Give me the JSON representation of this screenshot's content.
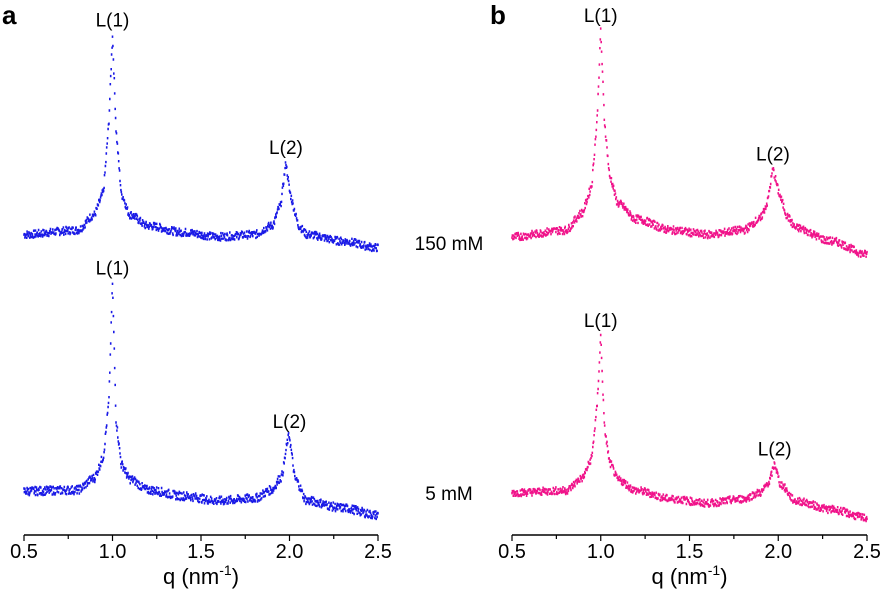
{
  "chart_data": [
    {
      "type": "scatter",
      "panel_label": "a",
      "xlabel": "q (nm",
      "xlabel_sup": "-1",
      "xlabel_end": ")",
      "xlim": [
        0.5,
        2.5
      ],
      "xticks": [
        "0.5",
        "1.0",
        "1.5",
        "2.0",
        "2.5"
      ],
      "y_axis_shown": false,
      "color": "#1a1ae6",
      "series": [
        {
          "name": "150 mM",
          "x": [
            0.5,
            0.8,
            0.9,
            0.95,
            0.98,
            1.0,
            1.02,
            1.05,
            1.1,
            1.2,
            1.4,
            1.6,
            1.8,
            1.9,
            1.95,
            1.98,
            2.0,
            2.05,
            2.1,
            2.3,
            2.5
          ],
          "y": [
            0.07,
            0.09,
            0.16,
            0.27,
            0.59,
            0.98,
            0.55,
            0.25,
            0.16,
            0.11,
            0.08,
            0.06,
            0.07,
            0.11,
            0.2,
            0.4,
            0.27,
            0.11,
            0.07,
            0.04,
            0.01
          ],
          "annotations": [
            {
              "x": 1.0,
              "text": "L(1)"
            },
            {
              "x": 1.98,
              "text": "L(2)"
            }
          ]
        },
        {
          "name": "5 mM",
          "x": [
            0.5,
            0.8,
            0.9,
            0.95,
            0.98,
            1.0,
            1.02,
            1.05,
            1.1,
            1.2,
            1.4,
            1.6,
            1.8,
            1.9,
            1.95,
            2.0,
            2.03,
            2.1,
            2.3,
            2.5
          ],
          "y": [
            0.12,
            0.125,
            0.175,
            0.27,
            0.5,
            0.99,
            0.42,
            0.23,
            0.17,
            0.125,
            0.1,
            0.08,
            0.09,
            0.125,
            0.175,
            0.35,
            0.17,
            0.08,
            0.05,
            0.02
          ],
          "annotations": [
            {
              "x": 1.0,
              "text": "L(1)"
            },
            {
              "x": 2.0,
              "text": "L(2)"
            }
          ]
        }
      ]
    },
    {
      "type": "scatter",
      "panel_label": "b",
      "xlabel": "q (nm",
      "xlabel_sup": "-1",
      "xlabel_end": ")",
      "xlim": [
        0.5,
        2.5
      ],
      "xticks": [
        "0.5",
        "1.0",
        "1.5",
        "2.0",
        "2.5"
      ],
      "y_axis_shown": false,
      "color": "#f0138a",
      "series": [
        {
          "name": "150 mM",
          "x": [
            0.5,
            0.8,
            0.9,
            0.95,
            0.98,
            1.0,
            1.02,
            1.05,
            1.1,
            1.2,
            1.4,
            1.6,
            1.8,
            1.9,
            1.94,
            1.97,
            2.0,
            2.05,
            2.1,
            2.3,
            2.5
          ],
          "y": [
            0.06,
            0.09,
            0.17,
            0.3,
            0.6,
            1.0,
            0.6,
            0.33,
            0.21,
            0.14,
            0.09,
            0.07,
            0.09,
            0.14,
            0.22,
            0.37,
            0.27,
            0.15,
            0.1,
            0.04,
            -0.02
          ],
          "annotations": [
            {
              "x": 1.0,
              "text": "L(1)"
            },
            {
              "x": 1.97,
              "text": "L(2)"
            }
          ]
        },
        {
          "name": "5 mM",
          "x": [
            0.5,
            0.8,
            0.9,
            0.95,
            0.98,
            1.0,
            1.02,
            1.05,
            1.1,
            1.2,
            1.4,
            1.6,
            1.8,
            1.9,
            1.95,
            1.98,
            2.01,
            2.1,
            2.3,
            2.5
          ],
          "y": [
            0.13,
            0.14,
            0.2,
            0.3,
            0.55,
            0.88,
            0.45,
            0.27,
            0.19,
            0.14,
            0.1,
            0.08,
            0.1,
            0.13,
            0.18,
            0.27,
            0.17,
            0.09,
            0.05,
            0.01
          ],
          "annotations": [
            {
              "x": 1.0,
              "text": "L(1)"
            },
            {
              "x": 1.98,
              "text": "L(2)"
            }
          ]
        }
      ]
    }
  ]
}
